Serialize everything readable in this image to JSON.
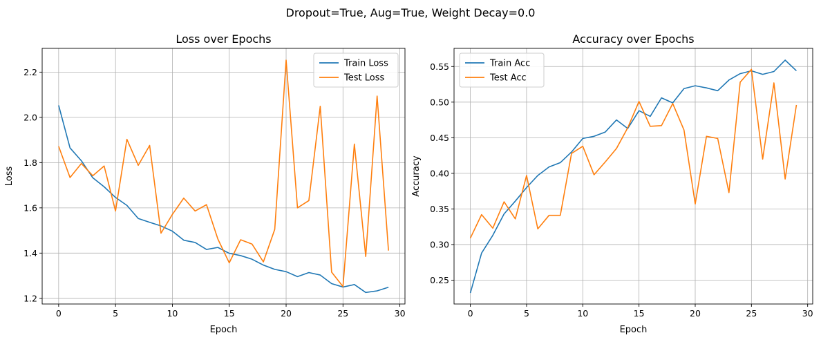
{
  "figure": {
    "suptitle": "Dropout=True, Aug=True, Weight Decay=0.0"
  },
  "chart_data": [
    {
      "type": "line",
      "title": "Loss over Epochs",
      "xlabel": "Epoch",
      "ylabel": "Loss",
      "x": [
        0,
        1,
        2,
        3,
        4,
        5,
        6,
        7,
        8,
        9,
        10,
        11,
        12,
        13,
        14,
        15,
        16,
        17,
        18,
        19,
        20,
        21,
        22,
        23,
        24,
        25,
        26,
        27,
        28,
        29
      ],
      "xlim": [
        -1.45,
        30.45
      ],
      "ylim": [
        1.175,
        2.305
      ],
      "xticks": [
        0,
        5,
        10,
        15,
        20,
        25,
        30
      ],
      "yticks": [
        1.2,
        1.4,
        1.6,
        1.8,
        2.0,
        2.2
      ],
      "ytick_labels": [
        "1.2",
        "1.4",
        "1.6",
        "1.8",
        "2.0",
        "2.2"
      ],
      "grid": true,
      "legend_loc": "upper right",
      "series": [
        {
          "name": "Train Loss",
          "color": "#1f77b4",
          "values": [
            2.053,
            1.865,
            1.808,
            1.733,
            1.693,
            1.646,
            1.611,
            1.553,
            1.536,
            1.52,
            1.497,
            1.457,
            1.447,
            1.416,
            1.425,
            1.399,
            1.389,
            1.373,
            1.347,
            1.328,
            1.318,
            1.296,
            1.314,
            1.303,
            1.265,
            1.25,
            1.261,
            1.226,
            1.233,
            1.249
          ]
        },
        {
          "name": "Test Loss",
          "color": "#ff7f0e",
          "values": [
            1.872,
            1.734,
            1.796,
            1.742,
            1.785,
            1.586,
            1.903,
            1.788,
            1.876,
            1.488,
            1.571,
            1.643,
            1.586,
            1.614,
            1.462,
            1.357,
            1.459,
            1.44,
            1.361,
            1.505,
            2.253,
            1.6,
            1.632,
            2.049,
            1.316,
            1.252,
            1.882,
            1.385,
            2.094,
            1.411
          ]
        }
      ]
    },
    {
      "type": "line",
      "title": "Accuracy over Epochs",
      "xlabel": "Epoch",
      "ylabel": "Accuracy",
      "x": [
        0,
        1,
        2,
        3,
        4,
        5,
        6,
        7,
        8,
        9,
        10,
        11,
        12,
        13,
        14,
        15,
        16,
        17,
        18,
        19,
        20,
        21,
        22,
        23,
        24,
        25,
        26,
        27,
        28,
        29
      ],
      "xlim": [
        -1.45,
        30.45
      ],
      "ylim": [
        0.2165,
        0.5755
      ],
      "xticks": [
        0,
        5,
        10,
        15,
        20,
        25,
        30
      ],
      "yticks": [
        0.25,
        0.3,
        0.35,
        0.4,
        0.45,
        0.5,
        0.55
      ],
      "ytick_labels": [
        "0.25",
        "0.30",
        "0.35",
        "0.40",
        "0.45",
        "0.50",
        "0.55"
      ],
      "grid": true,
      "legend_loc": "upper left",
      "series": [
        {
          "name": "Train Acc",
          "color": "#1f77b4",
          "values": [
            0.232,
            0.288,
            0.313,
            0.343,
            0.361,
            0.38,
            0.397,
            0.409,
            0.415,
            0.43,
            0.449,
            0.452,
            0.458,
            0.475,
            0.463,
            0.488,
            0.48,
            0.506,
            0.499,
            0.519,
            0.523,
            0.52,
            0.516,
            0.531,
            0.54,
            0.544,
            0.539,
            0.543,
            0.559,
            0.544
          ]
        },
        {
          "name": "Test Acc",
          "color": "#ff7f0e",
          "values": [
            0.309,
            0.342,
            0.323,
            0.36,
            0.336,
            0.397,
            0.322,
            0.341,
            0.341,
            0.428,
            0.438,
            0.398,
            0.416,
            0.435,
            0.464,
            0.501,
            0.466,
            0.467,
            0.498,
            0.461,
            0.357,
            0.452,
            0.449,
            0.373,
            0.528,
            0.546,
            0.42,
            0.527,
            0.392,
            0.496
          ]
        }
      ]
    }
  ]
}
